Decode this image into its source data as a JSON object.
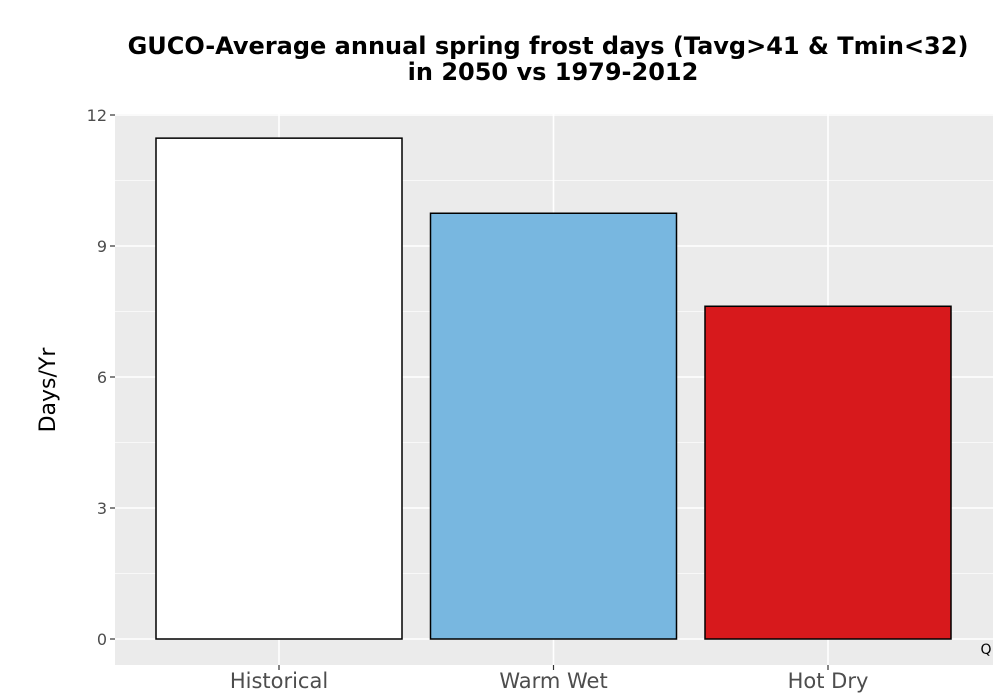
{
  "chart_data": {
    "type": "bar",
    "title_lines": [
      "GUCO-Average annual spring frost days (Tavg>41 & Tmin<32)",
      "in 2050 vs 1979-2012"
    ],
    "xlabel": "",
    "ylabel": "Days/Yr",
    "categories": [
      "Historical",
      "Warm Wet",
      "Hot Dry"
    ],
    "values": [
      11.47,
      9.75,
      7.62
    ],
    "bar_colors": [
      "#ffffff",
      "#78b7e0",
      "#d7191c"
    ],
    "ylim": [
      0,
      12
    ],
    "yticks": [
      0,
      3,
      6,
      9,
      12
    ],
    "ytick_labels": [
      "0",
      "3",
      "6",
      "9",
      "12"
    ],
    "grid": true,
    "panel_background": "#ebebeb",
    "grid_color": "#ffffff",
    "legend": "none"
  },
  "corner_mark": "Q"
}
